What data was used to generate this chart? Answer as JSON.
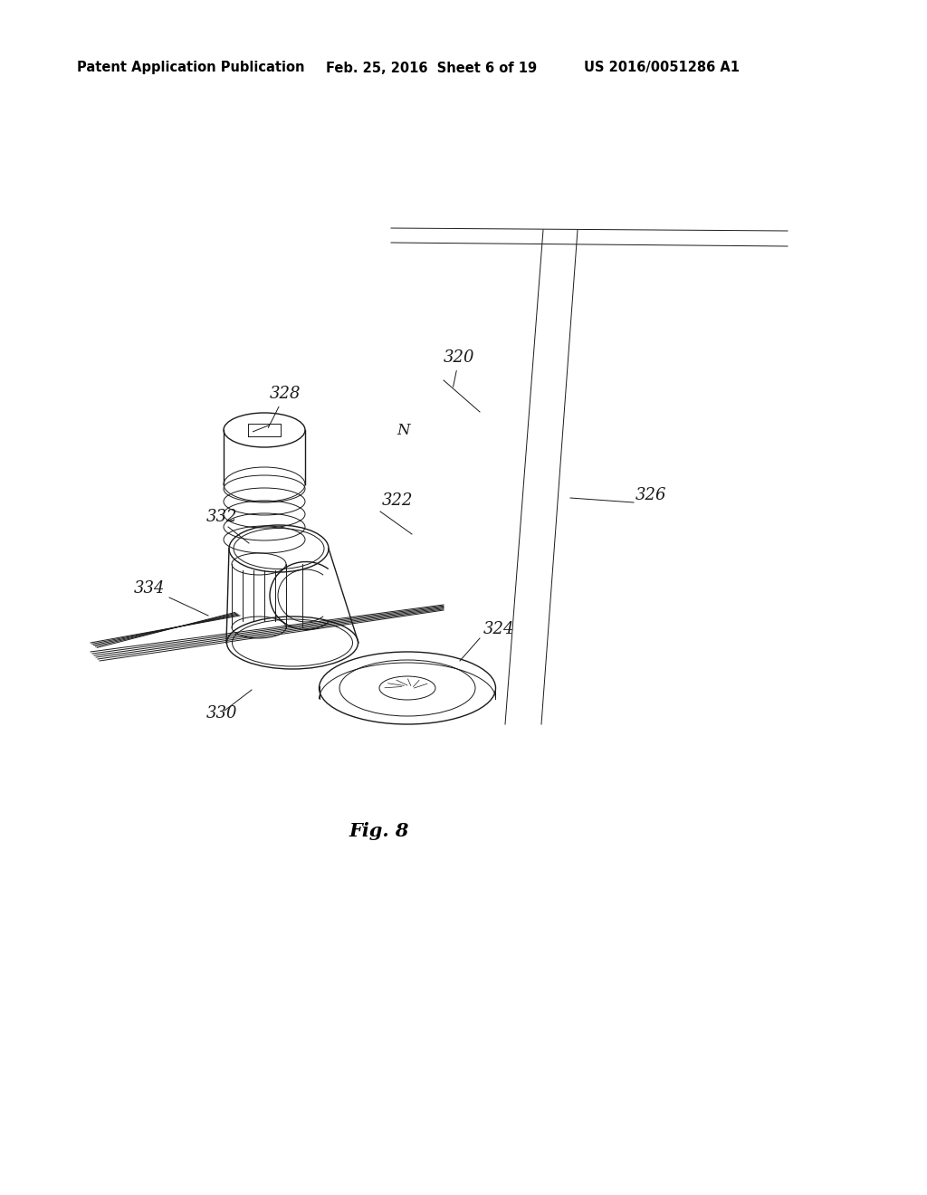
{
  "background_color": "#ffffff",
  "header_left": "Patent Application Publication",
  "header_center": "Feb. 25, 2016  Sheet 6 of 19",
  "header_right": "US 2016/0051286 A1",
  "figure_label": "Fig. 8",
  "header_fontsize": 10.5,
  "label_fontsize": 13,
  "fig_label_fontsize": 15,
  "line_color": "#1a1a1a"
}
